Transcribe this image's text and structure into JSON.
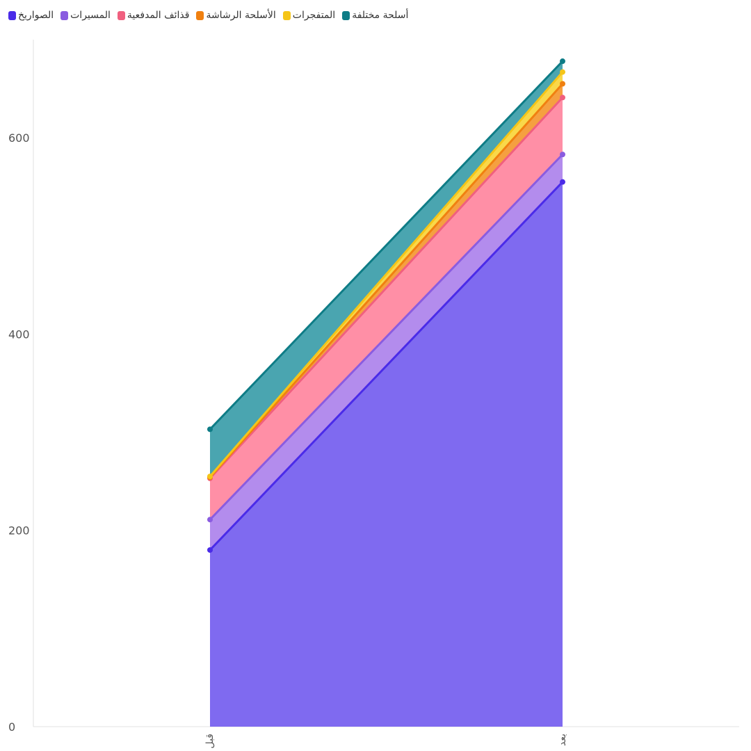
{
  "chart_data": {
    "type": "area",
    "stacked": true,
    "categories": [
      "قبل",
      "بعد"
    ],
    "ylim": [
      0,
      700
    ],
    "yticks": [
      0,
      200,
      400,
      600
    ],
    "grid": false,
    "legend": "top-left",
    "series": [
      {
        "name": "الصواريخ",
        "color": "#4a2be8",
        "fill": "#7f6af0",
        "values": [
          180,
          555
        ]
      },
      {
        "name": "المسيرات",
        "color": "#8a5ce0",
        "fill": "#b38ced",
        "values": [
          31,
          28
        ]
      },
      {
        "name": "قذائف المدفعية",
        "color": "#f0607f",
        "fill": "#ff8fa6",
        "values": [
          42,
          58
        ]
      },
      {
        "name": "الأسلحة الرشاشة",
        "color": "#f08010",
        "fill": "#f5a040",
        "values": [
          1,
          14
        ]
      },
      {
        "name": "المتفجرات",
        "color": "#f5c518",
        "fill": "#f9d84a",
        "values": [
          1,
          12
        ]
      },
      {
        "name": "أسلحة مختلفة",
        "color": "#0e7c86",
        "fill": "#4aa5b0",
        "values": [
          48,
          11
        ]
      }
    ]
  }
}
